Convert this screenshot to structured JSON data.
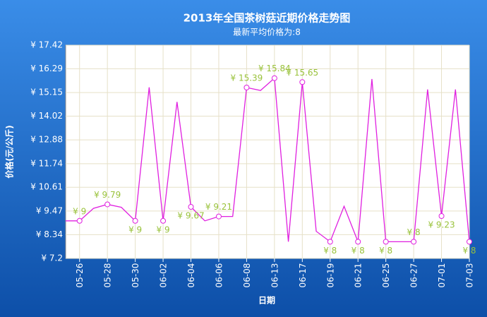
{
  "chart_data": {
    "type": "line",
    "title": "2013年全国茶树菇近期价格走势图",
    "subtitle": "最新平均价格为:8",
    "x_label": "日期",
    "y_label": "价格(元/公斤)",
    "categories": [
      null,
      "05-26",
      null,
      "05-28",
      null,
      "05-30",
      null,
      "06-02",
      null,
      "06-04",
      null,
      "06-06",
      null,
      "06-08",
      null,
      "06-13",
      null,
      "06-17",
      null,
      "06-19",
      null,
      "06-21",
      null,
      "06-25",
      null,
      "06-27",
      null,
      "07-01",
      null,
      "07-03"
    ],
    "series": [
      {
        "name": "价格",
        "color": "#e020e0",
        "values": [
          9,
          9,
          9.6,
          9.79,
          9.65,
          9,
          15.4,
          9,
          14.7,
          9.67,
          9,
          9.21,
          9.21,
          15.39,
          15.25,
          15.84,
          8,
          15.65,
          8.5,
          8,
          9.7,
          8,
          15.8,
          8,
          8,
          8,
          15.3,
          9.23,
          15.3,
          8
        ],
        "value_labels": [
          null,
          "¥ 9",
          null,
          "¥ 9.79",
          null,
          "¥ 9",
          null,
          "¥ 9",
          null,
          "¥ 9.67",
          null,
          "¥ 9.21",
          null,
          "¥ 15.39",
          null,
          "¥ 15.84",
          null,
          "¥ 15.65",
          null,
          "¥ 8",
          null,
          "¥ 8",
          null,
          "¥ 8",
          null,
          "¥ 8",
          null,
          "¥ 9.23",
          null,
          "¥ 8"
        ]
      }
    ],
    "ylim": [
      7.2,
      17.42
    ],
    "yticks": [
      {
        "value": 7.2,
        "label": "¥ 7.2"
      },
      {
        "value": 8.34,
        "label": "¥ 8.34"
      },
      {
        "value": 9.47,
        "label": "¥ 9.47"
      },
      {
        "value": 10.61,
        "label": "¥ 10.61"
      },
      {
        "value": 11.74,
        "label": "¥ 11.74"
      },
      {
        "value": 12.88,
        "label": "¥ 12.88"
      },
      {
        "value": 14.02,
        "label": "¥ 14.02"
      },
      {
        "value": 15.15,
        "label": "¥ 15.15"
      },
      {
        "value": 16.29,
        "label": "¥ 16.29"
      },
      {
        "value": 17.42,
        "label": "¥ 17.42"
      }
    ],
    "grid": true
  }
}
